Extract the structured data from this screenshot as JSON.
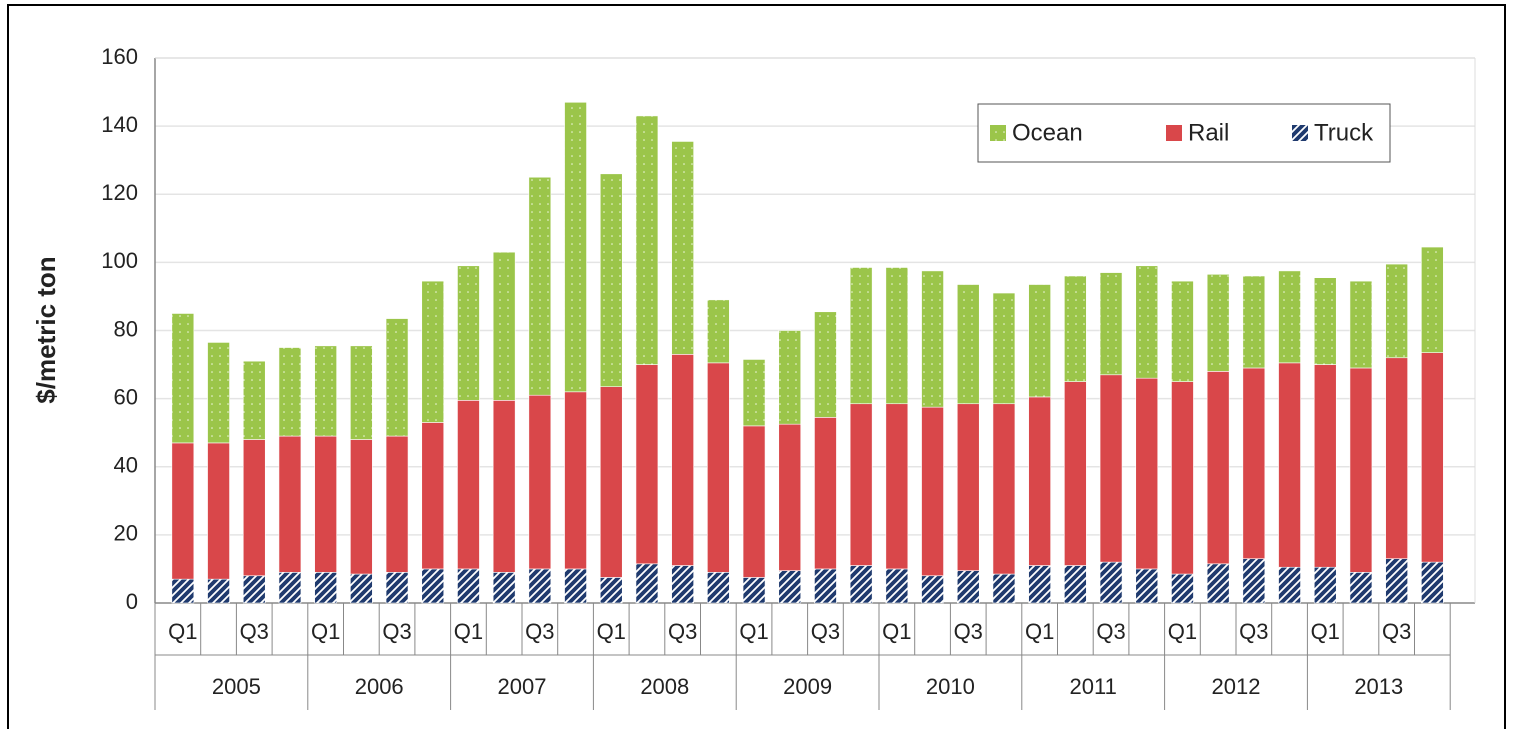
{
  "chart_data": {
    "type": "stacked_bar",
    "ylabel": "$/metric ton",
    "categories": [
      "Q1",
      null,
      "Q3",
      null,
      "Q1",
      null,
      "Q3",
      null,
      "Q1",
      null,
      "Q3",
      null,
      "Q1",
      null,
      "Q3",
      null,
      "Q1",
      null,
      "Q3",
      null,
      "Q1",
      null,
      "Q3",
      null,
      "Q1",
      null,
      "Q3",
      null,
      "Q1",
      null,
      "Q3",
      null,
      "Q1",
      null,
      "Q3",
      null
    ],
    "groups": [
      "2005",
      "2006",
      "2007",
      "2008",
      "2009",
      "2010",
      "2011",
      "2012",
      "2013"
    ],
    "series": [
      {
        "name": "Truck",
        "color": "#1f3a6e",
        "values": [
          7,
          7,
          8,
          9,
          9,
          8.5,
          9,
          10,
          10,
          9,
          10,
          10,
          7.5,
          11.5,
          11,
          9,
          7.5,
          9.5,
          10,
          11,
          10,
          8,
          9.5,
          8.5,
          11,
          11,
          12,
          10,
          8.5,
          11.5,
          13,
          10.5,
          10.5,
          9,
          13,
          12
        ]
      },
      {
        "name": "Rail",
        "color": "#d9474a",
        "values": [
          40,
          40,
          40,
          40,
          40,
          39.5,
          40,
          43,
          49.5,
          50.5,
          51,
          52,
          56,
          58.5,
          62,
          61.5,
          44.5,
          43,
          44.5,
          47.5,
          48.5,
          49.5,
          49,
          50,
          49.5,
          54,
          55,
          56,
          56.5,
          56.5,
          56,
          60,
          59.5,
          60,
          59,
          61.5
        ]
      },
      {
        "name": "Ocean",
        "color": "#9bc54a",
        "values": [
          38,
          29.5,
          23,
          26,
          26.5,
          27.5,
          34.5,
          41.5,
          39.5,
          43.5,
          64,
          85,
          62.5,
          73,
          62.5,
          18.5,
          19.5,
          27.5,
          31,
          40,
          40,
          40,
          35,
          32.5,
          33,
          31,
          30,
          33,
          29.5,
          28.5,
          27,
          27,
          25.5,
          25.5,
          27.5,
          31
        ]
      }
    ],
    "ylim": [
      0,
      160
    ],
    "yticks": [
      0,
      20,
      40,
      60,
      80,
      100,
      120,
      140,
      160
    ],
    "grid": true,
    "legend": "top-right"
  }
}
